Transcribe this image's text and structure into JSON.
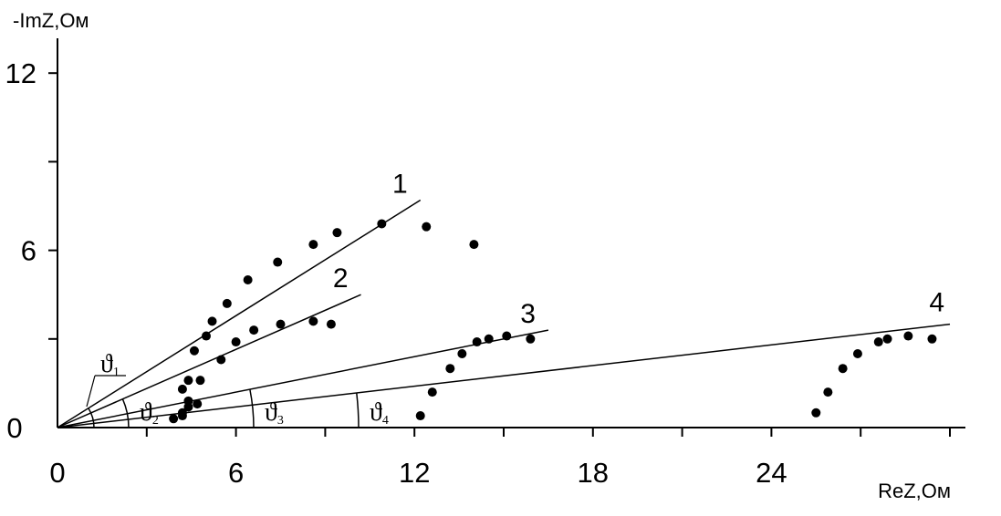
{
  "chart_data": {
    "type": "scatter",
    "xlabel": "ReZ,Ом",
    "ylabel": "-ImZ,Ом",
    "xlim": [
      0,
      30
    ],
    "ylim": [
      0,
      12.5
    ],
    "x_ticks": [
      {
        "value": 0,
        "label": "0"
      },
      {
        "value": 6,
        "label": "6"
      },
      {
        "value": 12,
        "label": "12"
      },
      {
        "value": 18,
        "label": "18"
      },
      {
        "value": 24,
        "label": "24"
      }
    ],
    "y_ticks": [
      {
        "value": 0,
        "label": "0"
      },
      {
        "value": 6,
        "label": "6"
      },
      {
        "value": 12,
        "label": "12"
      }
    ],
    "x_minor_step": 3,
    "y_minor_step": 3,
    "grid": false,
    "series": [
      {
        "name": "1",
        "line_end": [
          12.2,
          7.7
        ],
        "points": [
          [
            4.6,
            2.6
          ],
          [
            5.2,
            3.6
          ],
          [
            5.7,
            4.2
          ],
          [
            6.4,
            5.0
          ],
          [
            7.4,
            5.6
          ],
          [
            8.6,
            6.2
          ],
          [
            9.4,
            6.6
          ],
          [
            10.9,
            6.9
          ],
          [
            12.4,
            6.8
          ],
          [
            14.0,
            6.2
          ]
        ]
      },
      {
        "name": "2",
        "line_end": [
          10.2,
          4.5
        ],
        "points": [
          [
            4.4,
            1.6
          ],
          [
            4.8,
            1.6
          ],
          [
            5.0,
            3.1
          ],
          [
            5.5,
            2.3
          ],
          [
            6.0,
            2.9
          ],
          [
            6.6,
            3.3
          ],
          [
            7.5,
            3.5
          ],
          [
            8.6,
            3.6
          ],
          [
            9.2,
            3.5
          ]
        ]
      },
      {
        "name": "3",
        "line_end": [
          16.5,
          3.3
        ],
        "points": [
          [
            4.2,
            0.4
          ],
          [
            4.4,
            0.7
          ],
          [
            4.7,
            0.8
          ],
          [
            4.2,
            1.3
          ],
          [
            12.2,
            0.4
          ],
          [
            12.6,
            1.2
          ],
          [
            13.2,
            2.0
          ],
          [
            13.6,
            2.5
          ],
          [
            14.1,
            2.9
          ],
          [
            14.5,
            3.0
          ],
          [
            15.1,
            3.1
          ],
          [
            15.9,
            3.0
          ]
        ]
      },
      {
        "name": "4",
        "line_end": [
          30.0,
          3.5
        ],
        "points": [
          [
            3.9,
            0.3
          ],
          [
            4.2,
            0.5
          ],
          [
            4.4,
            0.9
          ],
          [
            25.5,
            0.5
          ],
          [
            25.9,
            1.2
          ],
          [
            26.4,
            2.0
          ],
          [
            26.9,
            2.5
          ],
          [
            27.6,
            2.9
          ],
          [
            27.9,
            3.0
          ],
          [
            28.6,
            3.1
          ],
          [
            29.4,
            3.0
          ]
        ]
      }
    ],
    "angle_labels": [
      {
        "symbol": "ϑ",
        "subscript": "1",
        "series": "1"
      },
      {
        "symbol": "ϑ",
        "subscript": "2",
        "series": "2"
      },
      {
        "symbol": "ϑ",
        "subscript": "3",
        "series": "3"
      },
      {
        "symbol": "ϑ",
        "subscript": "4",
        "series": "4"
      }
    ]
  }
}
